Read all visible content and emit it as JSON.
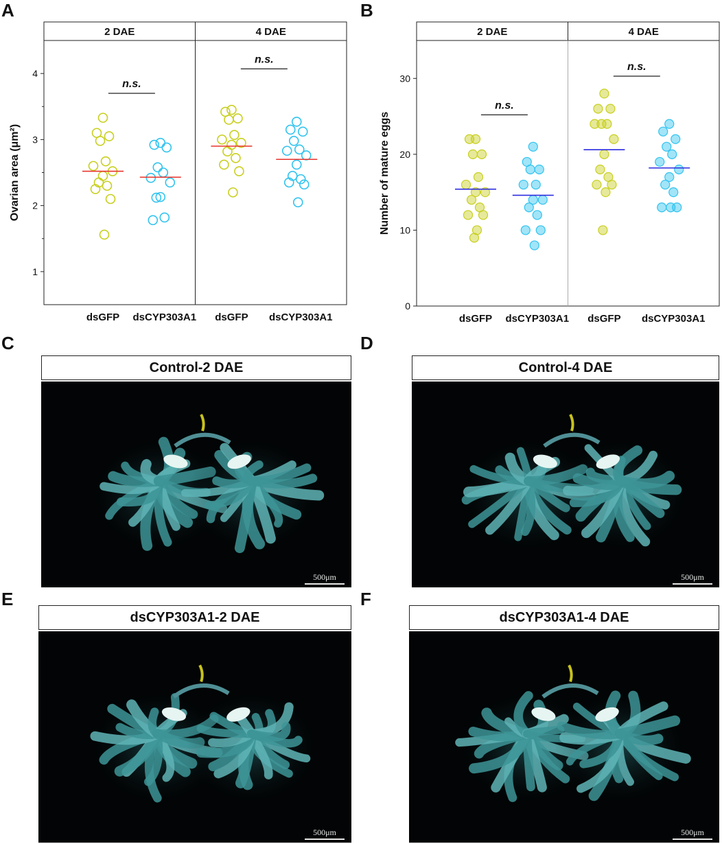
{
  "panels": {
    "a": "A",
    "b": "B",
    "c": "C",
    "d": "D",
    "e": "E",
    "f": "F"
  },
  "photos": {
    "c": {
      "title": "Control-2 DAE",
      "scale": "500μm"
    },
    "d": {
      "title": "Control-4 DAE",
      "scale": "500μm"
    },
    "e": {
      "title": "dsCYP303A1-2 DAE",
      "scale": "500μm"
    },
    "f": {
      "title": "dsCYP303A1-4 DAE",
      "scale": "500μm"
    }
  },
  "colors": {
    "dsGFP": "#c8cf1e",
    "dsCYP303A1": "#31c3ef",
    "meanA": "#e8332b",
    "meanB": "#2b2be0"
  },
  "chart_data": [
    {
      "type": "scatter",
      "ylabel": "Ovarian area (μm²)",
      "ylim": [
        0.5,
        4.5
      ],
      "yticks": [
        1,
        2,
        3,
        4
      ],
      "facets": [
        "2 DAE",
        "4 DAE"
      ],
      "categories": [
        "dsGFP",
        "dsCYP303A1",
        "dsGFP",
        "dsCYP303A1"
      ],
      "groups": [
        {
          "facet": "2 DAE",
          "name": "dsGFP",
          "mean": 2.52,
          "values": [
            3.33,
            3.1,
            3.05,
            2.98,
            2.67,
            2.6,
            2.52,
            2.45,
            2.35,
            2.3,
            2.25,
            2.1,
            1.56
          ]
        },
        {
          "facet": "2 DAE",
          "name": "dsCYP303A1",
          "mean": 2.43,
          "values": [
            2.95,
            2.92,
            2.88,
            2.58,
            2.5,
            2.42,
            2.35,
            2.13,
            2.12,
            1.82,
            1.78
          ]
        },
        {
          "facet": "4 DAE",
          "name": "dsGFP",
          "mean": 2.9,
          "values": [
            3.45,
            3.42,
            3.32,
            3.3,
            3.07,
            3.0,
            2.95,
            2.92,
            2.82,
            2.72,
            2.62,
            2.52,
            2.2
          ]
        },
        {
          "facet": "4 DAE",
          "name": "dsCYP303A1",
          "mean": 2.7,
          "values": [
            3.27,
            3.15,
            3.12,
            2.98,
            2.85,
            2.83,
            2.76,
            2.62,
            2.45,
            2.4,
            2.35,
            2.32,
            2.05
          ]
        }
      ],
      "annotations": [
        {
          "text": "n.s.",
          "facet": "2 DAE",
          "y": 3.7
        },
        {
          "text": "n.s.",
          "facet": "4 DAE",
          "y": 4.07
        }
      ]
    },
    {
      "type": "scatter",
      "ylabel": "Number of mature eggs",
      "ylim": [
        0,
        35
      ],
      "yticks": [
        0,
        10,
        20,
        30
      ],
      "facets": [
        "2 DAE",
        "4 DAE"
      ],
      "categories": [
        "dsGFP",
        "dsCYP303A1",
        "dsGFP",
        "dsCYP303A1"
      ],
      "groups": [
        {
          "facet": "2 DAE",
          "name": "dsGFP",
          "mean": 15.4,
          "values": [
            22,
            22,
            20,
            20,
            17,
            16,
            15,
            15,
            14,
            13,
            12,
            12,
            10,
            9
          ]
        },
        {
          "facet": "2 DAE",
          "name": "dsCYP303A1",
          "mean": 14.6,
          "values": [
            21,
            19,
            18,
            18,
            16,
            16,
            14,
            14,
            13,
            12,
            10,
            10,
            8
          ]
        },
        {
          "facet": "4 DAE",
          "name": "dsGFP",
          "mean": 20.6,
          "values": [
            28,
            26,
            26,
            24,
            24,
            24,
            22,
            20,
            18,
            17,
            16,
            16,
            15,
            10
          ]
        },
        {
          "facet": "4 DAE",
          "name": "dsCYP303A1",
          "mean": 18.2,
          "values": [
            24,
            23,
            22,
            21,
            20,
            19,
            18,
            17,
            16,
            15,
            13,
            13,
            13
          ]
        }
      ],
      "annotations": [
        {
          "text": "n.s.",
          "facet": "2 DAE",
          "y": 25.2
        },
        {
          "text": "n.s.",
          "facet": "4 DAE",
          "y": 30.3
        }
      ]
    }
  ]
}
